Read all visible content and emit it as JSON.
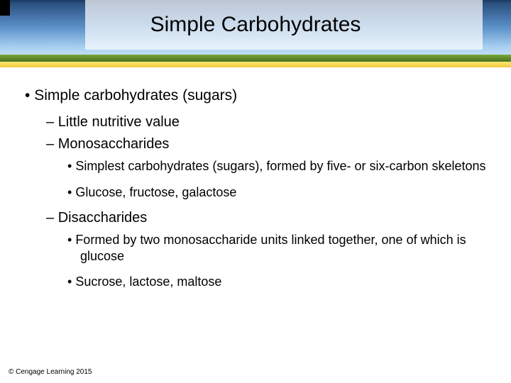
{
  "header": {
    "title": "Simple Carbohydrates",
    "gradient_colors": [
      "#1a3860",
      "#2a5080",
      "#5a90c8",
      "#a8d0f0",
      "#e8f4ff"
    ],
    "grass_colors": [
      "#7aa838",
      "#4a7020"
    ],
    "bar_colors": [
      "#ffe870",
      "#f0c840"
    ]
  },
  "content": {
    "b1": "Simple carbohydrates (sugars)",
    "b2a": "Little nutritive value",
    "b2b": "Monosaccharides",
    "b3a": "Simplest carbohydrates (sugars), formed by five- or six-carbon skeletons",
    "b3b": "Glucose, fructose, galactose",
    "b2c": "Disaccharides",
    "b3c": "Formed by two monosaccharide units linked together, one of which is glucose",
    "b3d": "Sucrose, lactose, maltose"
  },
  "footer": {
    "copyright": "© Cengage Learning 2015"
  }
}
